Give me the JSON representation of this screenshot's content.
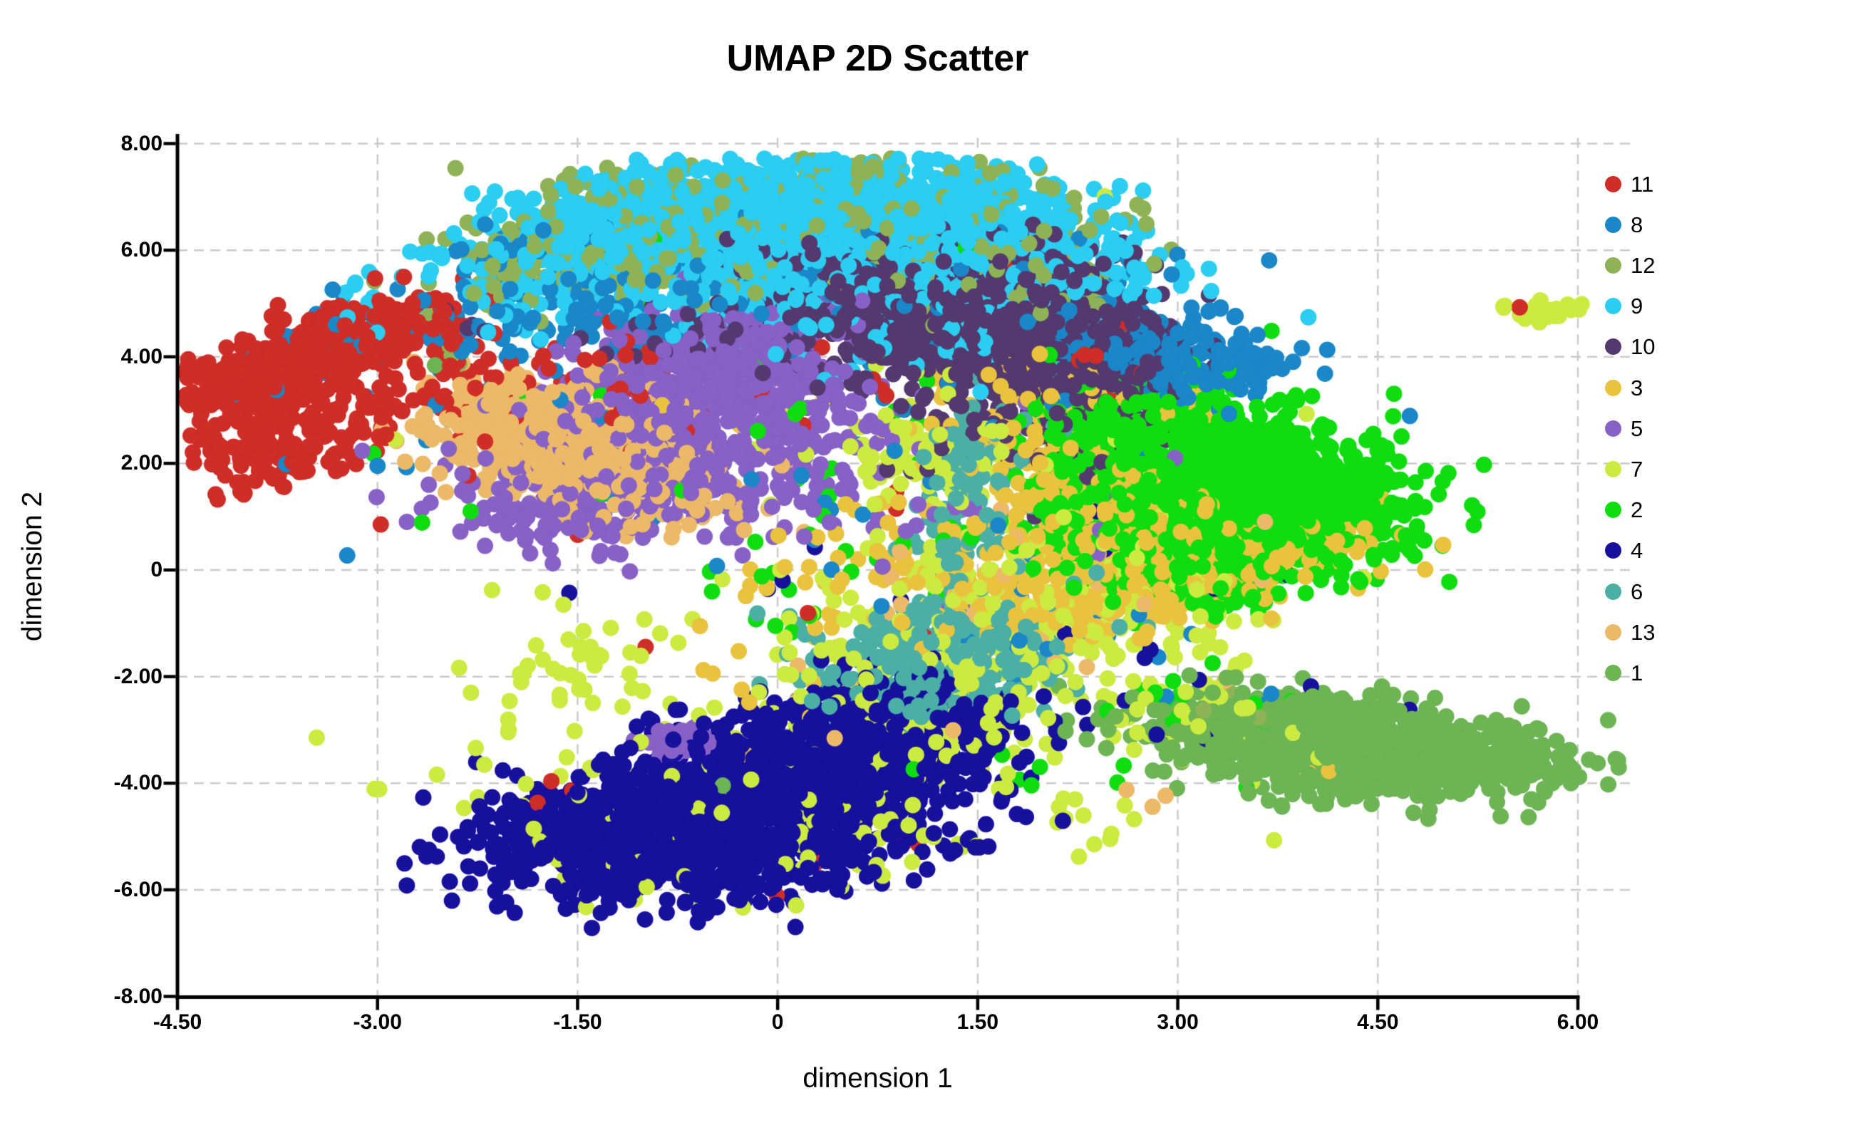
{
  "title": "UMAP 2D Scatter",
  "chart_data": {
    "type": "scatter",
    "title": "UMAP 2D Scatter",
    "xlabel": "dimension 1",
    "ylabel": "dimension 2",
    "xlim": [
      -4.5,
      6.35
    ],
    "ylim": [
      -8,
      8
    ],
    "grid": {
      "style": "dashed",
      "color": "#cbcbcb"
    },
    "axis_color": "#000000",
    "background": "#ffffff",
    "point_radius_px": 11.5,
    "seed": 11,
    "x_ticks": [
      {
        "value": -4.5,
        "label": "-4.50"
      },
      {
        "value": -3.0,
        "label": "-3.00"
      },
      {
        "value": -1.5,
        "label": "-1.50"
      },
      {
        "value": 0.0,
        "label": "0"
      },
      {
        "value": 1.5,
        "label": "1.50"
      },
      {
        "value": 3.0,
        "label": "3.00"
      },
      {
        "value": 4.5,
        "label": "4.50"
      },
      {
        "value": 6.0,
        "label": "6.00"
      }
    ],
    "y_ticks": [
      {
        "value": 8.0,
        "label": "8.00"
      },
      {
        "value": 6.0,
        "label": "6.00"
      },
      {
        "value": 4.0,
        "label": "4.00"
      },
      {
        "value": 2.0,
        "label": "2.00"
      },
      {
        "value": 0.0,
        "label": "0"
      },
      {
        "value": -2.0,
        "label": "-2.00"
      },
      {
        "value": -4.0,
        "label": "-4.00"
      },
      {
        "value": -6.0,
        "label": "-6.00"
      },
      {
        "value": -8.0,
        "label": "-8.00"
      }
    ],
    "legend_position": "right",
    "series": [
      {
        "name": "11",
        "color": "#cf2d27",
        "components": [
          [
            -3.5,
            4.0,
            0.62,
            0.25,
            38,
            300
          ],
          [
            -3.2,
            4.45,
            0.35,
            0.25,
            38,
            120
          ],
          [
            -3.85,
            3.35,
            0.3,
            0.3,
            0,
            130
          ],
          [
            -3.8,
            2.3,
            0.32,
            0.38,
            0,
            130
          ],
          [
            -2.7,
            3.35,
            0.55,
            0.4,
            20,
            80
          ],
          [
            -1.7,
            3.6,
            0.9,
            0.7,
            0,
            45
          ],
          [
            2.3,
            3.6,
            0.3,
            0.35,
            0,
            18
          ],
          [
            0.3,
            2.2,
            2.2,
            1.8,
            0,
            18
          ],
          [
            -0.2,
            -4.6,
            1.2,
            0.8,
            0,
            6
          ],
          [
            1.0,
            -5.4,
            0.2,
            0.2,
            0,
            2
          ],
          [
            5.52,
            4.92,
            0.06,
            0.06,
            0,
            2
          ]
        ]
      },
      {
        "name": "8",
        "color": "#1987c8",
        "components": [
          [
            2.8,
            4.15,
            0.5,
            0.38,
            -25,
            200
          ],
          [
            3.15,
            3.6,
            0.3,
            0.3,
            0,
            70
          ],
          [
            0.4,
            5.55,
            1.3,
            0.5,
            0,
            130
          ],
          [
            -1.15,
            4.85,
            0.35,
            0.5,
            0,
            70
          ],
          [
            -2.5,
            4.5,
            0.7,
            0.55,
            0,
            60
          ],
          [
            -1.8,
            6.1,
            0.4,
            0.3,
            30,
            35
          ],
          [
            0.6,
            2.2,
            1.8,
            1.5,
            0,
            45
          ],
          [
            1.9,
            -1.2,
            0.5,
            0.6,
            0,
            18
          ],
          [
            3.6,
            -2.5,
            0.35,
            0.3,
            0,
            5
          ],
          [
            -3.1,
            2.6,
            0.4,
            0.6,
            0,
            8
          ]
        ]
      },
      {
        "name": "12",
        "color": "#8eb356",
        "components": [
          [
            -0.1,
            6.7,
            1.0,
            0.5,
            0,
            180
          ],
          [
            0.9,
            6.25,
            0.8,
            0.45,
            0,
            120
          ],
          [
            -1.55,
            5.75,
            0.5,
            0.42,
            30,
            110
          ],
          [
            -0.5,
            5.6,
            0.8,
            0.35,
            0,
            60
          ],
          [
            1.9,
            5.3,
            0.45,
            0.6,
            -40,
            40
          ],
          [
            0.3,
            7.3,
            0.9,
            0.25,
            0,
            30
          ],
          [
            2.3,
            4.85,
            0.2,
            0.2,
            0,
            8
          ],
          [
            -2.5,
            3.9,
            0.1,
            0.1,
            0,
            3
          ],
          [
            2.6,
            0.05,
            0.08,
            0.08,
            0,
            2
          ],
          [
            3.7,
            -2.6,
            0.3,
            0.2,
            0,
            5
          ]
        ]
      },
      {
        "name": "9",
        "color": "#2bcdf0",
        "components": [
          [
            -0.2,
            6.85,
            0.75,
            0.42,
            0,
            520
          ],
          [
            0.75,
            6.75,
            0.6,
            0.42,
            0,
            420
          ],
          [
            1.55,
            6.35,
            0.45,
            0.4,
            -20,
            260
          ],
          [
            -1.3,
            6.35,
            0.42,
            0.38,
            20,
            200
          ],
          [
            0.1,
            5.9,
            1.0,
            0.45,
            0,
            350
          ],
          [
            0.3,
            5.15,
            1.1,
            0.4,
            0,
            170
          ],
          [
            -2.3,
            5.0,
            0.55,
            0.45,
            0,
            40
          ],
          [
            0.9,
            4.4,
            0.9,
            0.5,
            0,
            60
          ],
          [
            2.35,
            5.6,
            0.35,
            0.5,
            0,
            50
          ]
        ]
      },
      {
        "name": "10",
        "color": "#54396e",
        "components": [
          [
            1.35,
            4.9,
            0.6,
            0.55,
            -25,
            420
          ],
          [
            1.95,
            4.25,
            0.5,
            0.5,
            -30,
            320
          ],
          [
            2.45,
            3.7,
            0.35,
            0.4,
            -30,
            140
          ],
          [
            0.75,
            5.3,
            0.5,
            0.45,
            0,
            150
          ],
          [
            0.35,
            4.5,
            0.5,
            0.6,
            0,
            90
          ],
          [
            1.6,
            5.75,
            0.6,
            0.35,
            0,
            100
          ],
          [
            1.75,
            2.9,
            0.45,
            0.7,
            0,
            70
          ],
          [
            -0.9,
            4.35,
            0.3,
            0.3,
            0,
            10
          ],
          [
            -2.4,
            4.6,
            0.15,
            0.15,
            0,
            4
          ],
          [
            2.2,
            1.9,
            0.3,
            0.5,
            0,
            25
          ]
        ]
      },
      {
        "name": "3",
        "color": "#eac33e",
        "components": [
          [
            2.9,
            -0.25,
            0.8,
            0.3,
            33,
            300
          ],
          [
            2.45,
            0.9,
            0.4,
            0.8,
            0,
            200
          ],
          [
            2.2,
            2.0,
            0.45,
            0.6,
            0,
            90
          ],
          [
            1.4,
            0.1,
            0.7,
            0.9,
            0,
            120
          ],
          [
            2.0,
            3.3,
            0.5,
            0.5,
            0,
            60
          ],
          [
            3.4,
            0.4,
            0.45,
            0.45,
            0,
            90
          ],
          [
            0.1,
            -2.6,
            0.7,
            0.5,
            0,
            12
          ],
          [
            -0.55,
            2.9,
            0.2,
            0.2,
            0,
            4
          ],
          [
            0.0,
            0.3,
            0.5,
            0.5,
            0,
            6
          ],
          [
            4.05,
            -3.85,
            0.08,
            0.08,
            0,
            2
          ]
        ]
      },
      {
        "name": "5",
        "color": "#8761c6",
        "components": [
          [
            -0.45,
            3.95,
            0.5,
            0.5,
            0,
            270
          ],
          [
            -0.95,
            2.8,
            0.55,
            0.5,
            0,
            170
          ],
          [
            -0.85,
            1.5,
            0.8,
            0.55,
            0,
            220
          ],
          [
            0.0,
            2.9,
            0.4,
            0.6,
            0,
            85
          ],
          [
            -1.6,
            0.9,
            0.4,
            0.35,
            0,
            55
          ],
          [
            -0.7,
            -3.2,
            0.15,
            0.18,
            0,
            45
          ],
          [
            0.9,
            1.6,
            1.0,
            1.0,
            0,
            28
          ],
          [
            2.5,
            0.8,
            0.3,
            0.5,
            0,
            8
          ],
          [
            -2.8,
            2.0,
            0.3,
            0.3,
            0,
            5
          ],
          [
            1.35,
            -0.55,
            0.1,
            0.1,
            0,
            2
          ]
        ]
      },
      {
        "name": "7",
        "color": "#cdea41",
        "components": [
          [
            1.95,
            -0.55,
            0.85,
            0.75,
            0,
            240
          ],
          [
            1.35,
            -1.95,
            0.6,
            0.5,
            0,
            110
          ],
          [
            1.05,
            2.1,
            0.3,
            0.4,
            0,
            70
          ],
          [
            -0.3,
            -4.4,
            1.2,
            0.85,
            0,
            150
          ],
          [
            0.9,
            -3.1,
            0.5,
            0.5,
            0,
            60
          ],
          [
            -1.5,
            -1.75,
            0.45,
            0.5,
            0,
            40
          ],
          [
            5.68,
            4.87,
            0.14,
            0.1,
            -15,
            30
          ],
          [
            3.2,
            -2.9,
            0.35,
            0.5,
            0,
            35
          ],
          [
            2.05,
            -4.15,
            0.4,
            0.4,
            0,
            15
          ],
          [
            0.6,
            3.2,
            1.5,
            1.3,
            0,
            25
          ],
          [
            2.6,
            1.7,
            0.5,
            0.8,
            0,
            15
          ]
        ]
      },
      {
        "name": "2",
        "color": "#10dd10",
        "components": [
          [
            3.35,
            1.5,
            0.6,
            0.8,
            0,
            650
          ],
          [
            4.05,
            1.2,
            0.4,
            0.5,
            0,
            320
          ],
          [
            2.85,
            2.55,
            0.45,
            0.55,
            0,
            260
          ],
          [
            3.15,
            0.3,
            0.6,
            0.5,
            0,
            260
          ],
          [
            2.5,
            1.4,
            0.35,
            0.9,
            0,
            120
          ],
          [
            1.2,
            1.5,
            1.6,
            1.4,
            0,
            70
          ],
          [
            0.0,
            4.9,
            1.3,
            0.8,
            0,
            12
          ],
          [
            3.3,
            -2.55,
            0.45,
            0.35,
            0,
            22
          ],
          [
            2.0,
            -3.6,
            0.7,
            0.6,
            0,
            10
          ],
          [
            -2.2,
            2.6,
            0.7,
            1.0,
            0,
            8
          ],
          [
            0.4,
            -1.4,
            0.6,
            0.5,
            0,
            8
          ]
        ]
      },
      {
        "name": "4",
        "color": "#16109d",
        "components": [
          [
            -0.75,
            -4.65,
            0.8,
            0.5,
            35,
            800
          ],
          [
            0.25,
            -3.7,
            0.7,
            0.5,
            35,
            650
          ],
          [
            0.85,
            -2.75,
            0.45,
            0.4,
            35,
            280
          ],
          [
            -1.3,
            -5.05,
            0.4,
            0.45,
            0,
            260
          ],
          [
            -0.35,
            -5.55,
            0.55,
            0.33,
            10,
            200
          ],
          [
            0.3,
            -4.6,
            0.6,
            0.5,
            0,
            200
          ],
          [
            1.5,
            -1.2,
            1.2,
            1.2,
            0,
            25
          ],
          [
            3.0,
            -3.1,
            0.3,
            0.3,
            0,
            7
          ],
          [
            2.45,
            0.5,
            0.12,
            0.12,
            0,
            3
          ],
          [
            -0.05,
            -0.15,
            0.15,
            0.15,
            0,
            2
          ],
          [
            0.95,
            -0.1,
            0.1,
            0.1,
            0,
            2
          ],
          [
            4.55,
            -2.6,
            0.1,
            0.1,
            0,
            2
          ]
        ]
      },
      {
        "name": "6",
        "color": "#4bafa5",
        "components": [
          [
            1.3,
            -1.55,
            0.42,
            0.45,
            0,
            300
          ],
          [
            0.85,
            -2.4,
            0.33,
            0.28,
            0,
            90
          ],
          [
            1.45,
            1.7,
            0.18,
            0.8,
            0,
            100
          ],
          [
            1.25,
            0.45,
            0.2,
            0.3,
            0,
            25
          ],
          [
            2.3,
            -0.1,
            0.1,
            0.1,
            0,
            2
          ],
          [
            0.3,
            -1.3,
            0.15,
            0.15,
            0,
            3
          ],
          [
            1.9,
            2.7,
            0.2,
            0.2,
            0,
            4
          ],
          [
            0.0,
            -0.9,
            0.1,
            0.1,
            0,
            2
          ]
        ]
      },
      {
        "name": "13",
        "color": "#ecb968",
        "components": [
          [
            -1.8,
            2.6,
            0.42,
            0.42,
            0,
            300
          ],
          [
            -1.35,
            2.0,
            0.45,
            0.42,
            0,
            160
          ],
          [
            -1.95,
            3.25,
            0.4,
            0.3,
            0,
            60
          ],
          [
            -0.85,
            1.35,
            0.45,
            0.4,
            0,
            60
          ],
          [
            1.9,
            0.2,
            1.0,
            1.2,
            0,
            30
          ],
          [
            0.3,
            -2.2,
            0.8,
            0.6,
            0,
            10
          ],
          [
            3.95,
            -3.7,
            0.1,
            0.1,
            0,
            2
          ],
          [
            2.75,
            -4.3,
            0.2,
            0.15,
            0,
            3
          ]
        ]
      },
      {
        "name": "1",
        "color": "#6db455",
        "components": [
          [
            4.3,
            -3.25,
            0.8,
            0.38,
            -10,
            480
          ],
          [
            5.25,
            -3.55,
            0.38,
            0.24,
            -12,
            160
          ],
          [
            3.75,
            -2.8,
            0.4,
            0.3,
            0,
            170
          ],
          [
            4.45,
            -3.95,
            0.55,
            0.26,
            -5,
            140
          ],
          [
            3.4,
            -3.15,
            0.25,
            0.25,
            0,
            40
          ],
          [
            3.0,
            -2.5,
            0.25,
            0.2,
            0,
            6
          ],
          [
            -2.55,
            3.85,
            0.05,
            0.05,
            0,
            2
          ],
          [
            -0.35,
            -3.95,
            0.1,
            0.1,
            0,
            2
          ]
        ]
      }
    ]
  }
}
